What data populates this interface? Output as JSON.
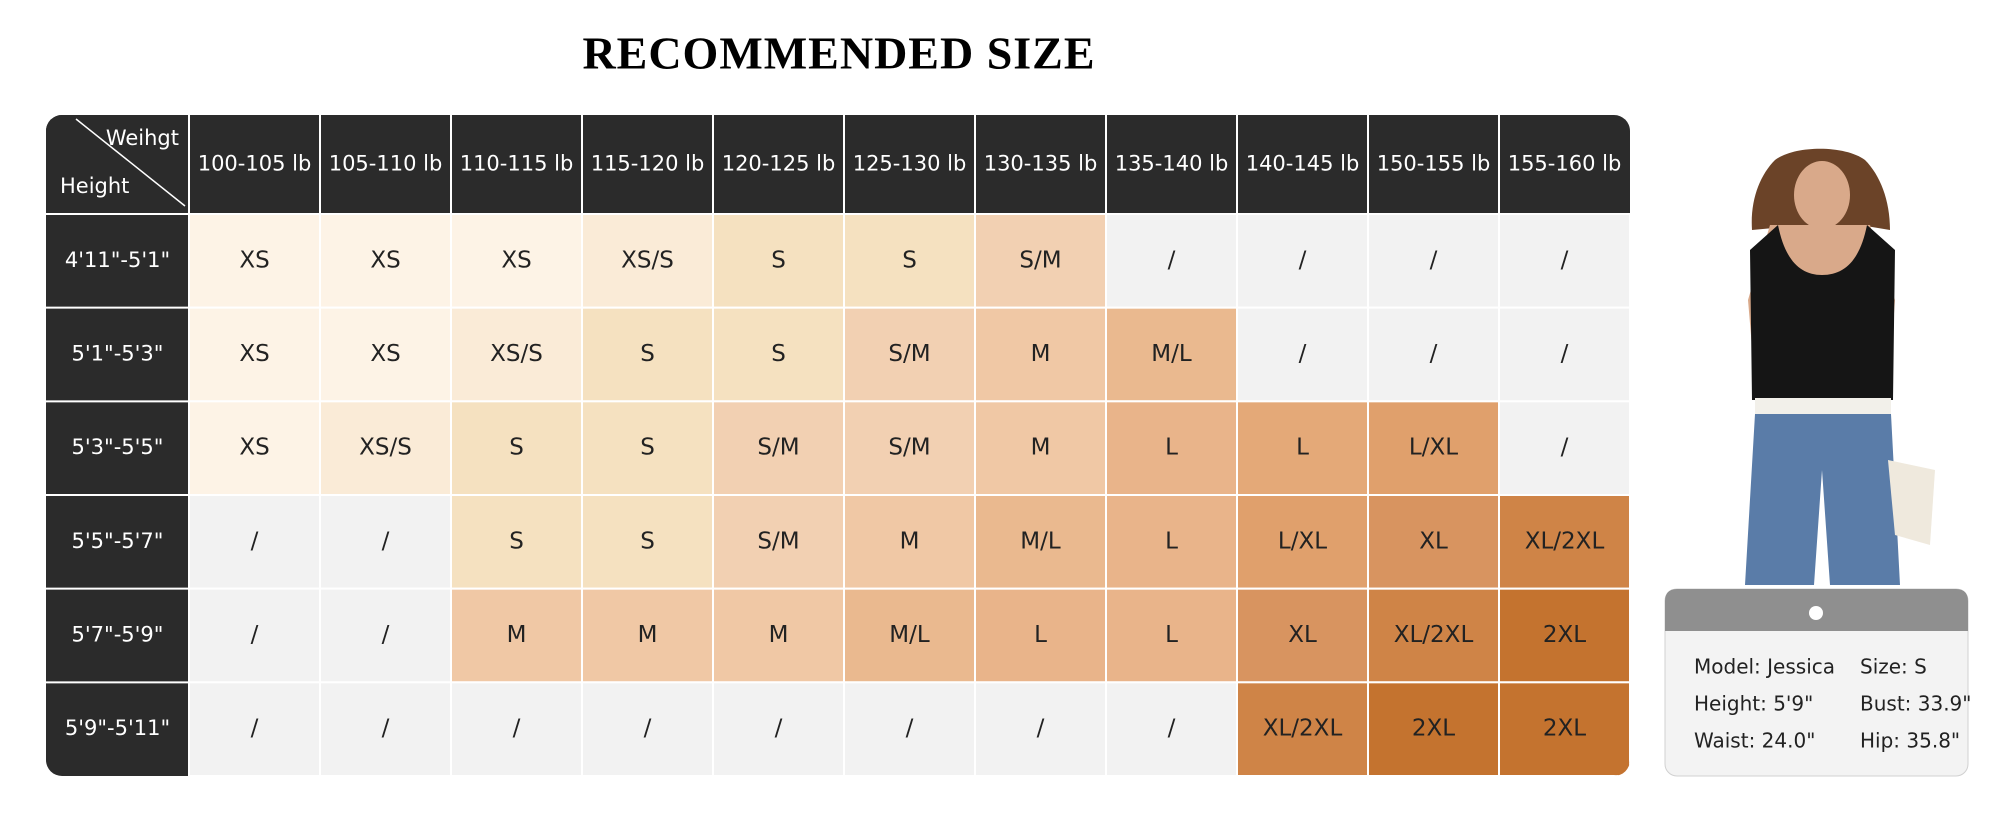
{
  "title": "RECOMMENDED SIZE",
  "table": {
    "corner": {
      "top": "Weihgt",
      "bottom": "Height"
    },
    "columns": [
      "100-105 lb",
      "105-110 lb",
      "110-115 lb",
      "115-120 lb",
      "120-125 lb",
      "125-130 lb",
      "130-135 lb",
      "135-140 lb",
      "140-145 lb",
      "150-155 lb",
      "155-160 lb"
    ],
    "rows": [
      {
        "height": "4'11\"-5'1\"",
        "cells": [
          {
            "text": "XS",
            "color": "#fdf3e6"
          },
          {
            "text": "XS",
            "color": "#fdf3e6"
          },
          {
            "text": "XS",
            "color": "#fdf3e6"
          },
          {
            "text": "XS/S",
            "color": "#faebd7"
          },
          {
            "text": "S",
            "color": "#f5e1c0"
          },
          {
            "text": "S",
            "color": "#f5e1c0"
          },
          {
            "text": "S/M",
            "color": "#f2d0b2"
          },
          {
            "text": "/",
            "color": "#f2f2f2"
          },
          {
            "text": "/",
            "color": "#f2f2f2"
          },
          {
            "text": "/",
            "color": "#f2f2f2"
          },
          {
            "text": "/",
            "color": "#f2f2f2"
          }
        ]
      },
      {
        "height": "5'1\"-5'3\"",
        "cells": [
          {
            "text": "XS",
            "color": "#fdf3e6"
          },
          {
            "text": "XS",
            "color": "#fdf3e6"
          },
          {
            "text": "XS/S",
            "color": "#faebd7"
          },
          {
            "text": "S",
            "color": "#f5e1c0"
          },
          {
            "text": "S",
            "color": "#f5e1c0"
          },
          {
            "text": "S/M",
            "color": "#f2d0b2"
          },
          {
            "text": "M",
            "color": "#f0c8a5"
          },
          {
            "text": "M/L",
            "color": "#eab98f"
          },
          {
            "text": "/",
            "color": "#f2f2f2"
          },
          {
            "text": "/",
            "color": "#f2f2f2"
          },
          {
            "text": "/",
            "color": "#f2f2f2"
          }
        ]
      },
      {
        "height": "5'3\"-5'5\"",
        "cells": [
          {
            "text": "XS",
            "color": "#fdf3e6"
          },
          {
            "text": "XS/S",
            "color": "#faebd7"
          },
          {
            "text": "S",
            "color": "#f5e1c0"
          },
          {
            "text": "S",
            "color": "#f5e1c0"
          },
          {
            "text": "S/M",
            "color": "#f2d0b2"
          },
          {
            "text": "S/M",
            "color": "#f2d0b2"
          },
          {
            "text": "M",
            "color": "#f0c8a5"
          },
          {
            "text": "L",
            "color": "#e9b48a"
          },
          {
            "text": "L",
            "color": "#e4a978"
          },
          {
            "text": "L/XL",
            "color": "#e0a06c"
          },
          {
            "text": "/",
            "color": "#f2f2f2"
          }
        ]
      },
      {
        "height": "5'5\"-5'7\"",
        "cells": [
          {
            "text": "/",
            "color": "#f2f2f2"
          },
          {
            "text": "/",
            "color": "#f2f2f2"
          },
          {
            "text": "S",
            "color": "#f5e1c0"
          },
          {
            "text": "S",
            "color": "#f5e1c0"
          },
          {
            "text": "S/M",
            "color": "#f2d0b2"
          },
          {
            "text": "M",
            "color": "#f0c8a5"
          },
          {
            "text": "M/L",
            "color": "#eab98f"
          },
          {
            "text": "L",
            "color": "#e9b48a"
          },
          {
            "text": "L/XL",
            "color": "#e0a06c"
          },
          {
            "text": "XL",
            "color": "#d89460"
          },
          {
            "text": "XL/2XL",
            "color": "#cf8447"
          }
        ]
      },
      {
        "height": "5'7\"-5'9\"",
        "cells": [
          {
            "text": "/",
            "color": "#f2f2f2"
          },
          {
            "text": "/",
            "color": "#f2f2f2"
          },
          {
            "text": "M",
            "color": "#f0c8a5"
          },
          {
            "text": "M",
            "color": "#f0c8a5"
          },
          {
            "text": "M",
            "color": "#f0c8a5"
          },
          {
            "text": "M/L",
            "color": "#eab98f"
          },
          {
            "text": "L",
            "color": "#e9b48a"
          },
          {
            "text": "L",
            "color": "#e9b48a"
          },
          {
            "text": "XL",
            "color": "#d89460"
          },
          {
            "text": "XL/2XL",
            "color": "#cf8447"
          },
          {
            "text": "2XL",
            "color": "#c4732f"
          }
        ]
      },
      {
        "height": "5'9\"-5'11\"",
        "cells": [
          {
            "text": "/",
            "color": "#f2f2f2"
          },
          {
            "text": "/",
            "color": "#f2f2f2"
          },
          {
            "text": "/",
            "color": "#f2f2f2"
          },
          {
            "text": "/",
            "color": "#f2f2f2"
          },
          {
            "text": "/",
            "color": "#f2f2f2"
          },
          {
            "text": "/",
            "color": "#f2f2f2"
          },
          {
            "text": "/",
            "color": "#f2f2f2"
          },
          {
            "text": "/",
            "color": "#f2f2f2"
          },
          {
            "text": "XL/2XL",
            "color": "#cf8447"
          },
          {
            "text": "2XL",
            "color": "#c4732f"
          },
          {
            "text": "2XL",
            "color": "#c4732f"
          }
        ]
      }
    ]
  },
  "model_card": {
    "model": "Model: Jessica",
    "size": "Size: S",
    "height": "Height: 5'9\"",
    "bust": "Bust: 33.9\"",
    "waist": "Waist: 24.0\"",
    "hip": "Hip: 35.8\""
  }
}
